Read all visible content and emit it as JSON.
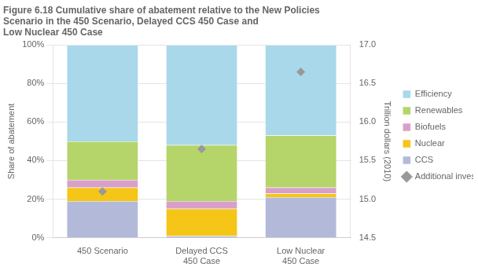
{
  "chart_data": {
    "type": "bar",
    "stacked": true,
    "title": "Figure 6.18 Cumulative share of abatement relative to the New Policies\nScenario in the 450 Scenario, Delayed CCS 450 Case and\nLow Nuclear 450 Case",
    "categories": [
      "450 Scenario",
      "Delayed CCS\n450 Case",
      "Low Nuclear\n450 Case"
    ],
    "series": [
      {
        "name": "CCS",
        "values": [
          19,
          1,
          21
        ],
        "color": "#b3b9d9"
      },
      {
        "name": "Nuclear",
        "values": [
          7,
          14,
          2
        ],
        "color": "#f5c518"
      },
      {
        "name": "Biofuels",
        "values": [
          4,
          4,
          3
        ],
        "color": "#d8a0c8"
      },
      {
        "name": "Renewables",
        "values": [
          20,
          29,
          27
        ],
        "color": "#b5d56a"
      },
      {
        "name": "Efficiency",
        "values": [
          50,
          52,
          47
        ],
        "color": "#a8d8ea"
      },
      {
        "name": "Additional investment (right axis)",
        "type": "scatter",
        "marker": "diamond",
        "axis": "y2",
        "color": "#999999",
        "values": [
          15.1,
          15.65,
          16.65
        ]
      }
    ],
    "y_label": "Share of abatement",
    "y2_label": "Trillion dollars (2010)",
    "ylim": [
      0,
      100
    ],
    "yticks": [
      {
        "value": 0,
        "label": "0%"
      },
      {
        "value": 20,
        "label": "20%"
      },
      {
        "value": 40,
        "label": "40%"
      },
      {
        "value": 60,
        "label": "60%"
      },
      {
        "value": 80,
        "label": "80%"
      },
      {
        "value": 100,
        "label": "100%"
      }
    ],
    "y2lim": [
      14.5,
      17.0
    ],
    "y2ticks": [
      14.5,
      {
        "value": 15.0,
        "label": "15.0"
      },
      15.5,
      {
        "value": 16.0,
        "label": "16.0"
      },
      16.5,
      {
        "value": 17.0,
        "label": "17.0"
      }
    ],
    "grid": true,
    "legend": "right"
  }
}
